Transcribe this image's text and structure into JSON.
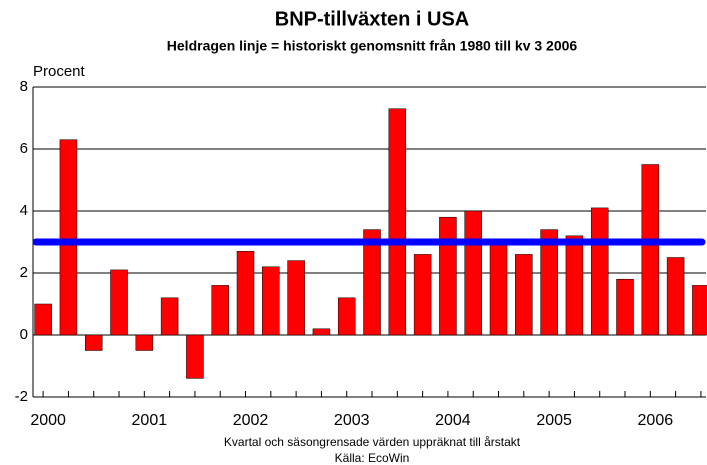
{
  "chart_data": {
    "type": "bar",
    "title": "BNP-tillväxten i USA",
    "subtitle": "Heldragen linje = historiskt genomsnitt från 1980 till kv 3 2006",
    "y_label": "Procent",
    "footnotes": [
      "Kvartal och säsongrensade värden uppräknat till årstakt",
      "Källa: EcoWin"
    ],
    "categories": [
      "2000",
      null,
      null,
      null,
      "2001",
      null,
      null,
      null,
      "2002",
      null,
      null,
      null,
      "2003",
      null,
      null,
      null,
      "2004",
      null,
      null,
      null,
      "2005",
      null,
      null,
      null,
      "2006",
      null,
      null
    ],
    "values": [
      1.0,
      6.3,
      -0.5,
      2.1,
      -0.5,
      1.2,
      -1.4,
      1.6,
      2.7,
      2.2,
      2.4,
      0.2,
      1.2,
      3.4,
      7.3,
      2.6,
      3.8,
      4.0,
      3.0,
      2.6,
      3.4,
      3.2,
      4.1,
      1.8,
      5.5,
      2.5,
      1.6
    ],
    "color": "#ff0000",
    "reference_line": {
      "value": 3,
      "color": "#0000ff"
    },
    "ylim": [
      -2,
      8
    ],
    "yticks": [
      -2,
      0,
      2,
      4,
      6,
      8
    ],
    "grid": true
  }
}
